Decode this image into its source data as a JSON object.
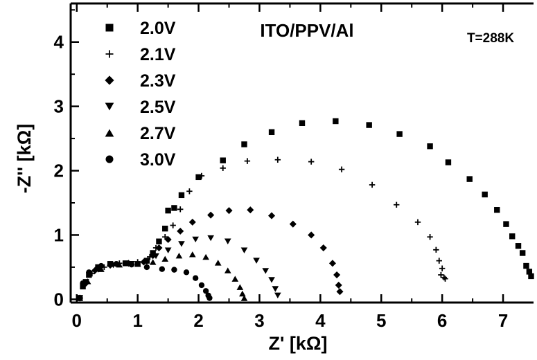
{
  "chart_data": {
    "type": "scatter",
    "title": "ITO/PPV/Al",
    "annotation": "T=288K",
    "xlabel": "Z' [kΩ]",
    "ylabel": "-Z'' [kΩ]",
    "xlim": [
      -0.1,
      7.5
    ],
    "ylim": [
      -0.05,
      4.6
    ],
    "xticks": [
      0,
      1,
      2,
      3,
      4,
      5,
      6,
      7
    ],
    "yticks": [
      0,
      1,
      2,
      3,
      4
    ],
    "legend_position": "top-left",
    "series": [
      {
        "name": "2.0V",
        "marker": "square",
        "x": [
          0.05,
          0.1,
          0.2,
          0.35,
          0.55,
          0.8,
          1.0,
          1.15,
          1.25,
          1.35,
          1.45,
          1.5,
          1.6,
          1.72,
          2.0,
          2.4,
          2.75,
          3.2,
          3.7,
          4.25,
          4.8,
          5.3,
          5.8,
          6.1,
          6.45,
          6.7,
          6.9,
          7.05,
          7.15,
          7.25,
          7.32,
          7.38,
          7.43,
          7.46
        ],
        "y": [
          0.02,
          0.2,
          0.38,
          0.5,
          0.55,
          0.56,
          0.55,
          0.6,
          0.72,
          0.9,
          1.1,
          1.38,
          1.42,
          1.62,
          1.9,
          2.16,
          2.41,
          2.6,
          2.74,
          2.77,
          2.71,
          2.57,
          2.38,
          2.13,
          1.87,
          1.63,
          1.39,
          1.17,
          0.98,
          0.83,
          0.72,
          0.52,
          0.43,
          0.36
        ]
      },
      {
        "name": "2.1V",
        "marker": "plus",
        "x": [
          0.05,
          0.12,
          0.25,
          0.45,
          0.7,
          1.0,
          1.2,
          1.3,
          1.45,
          1.58,
          1.7,
          1.85,
          2.05,
          2.4,
          2.8,
          3.3,
          3.85,
          4.35,
          4.85,
          5.25,
          5.6,
          5.8,
          5.9,
          5.95,
          6.0,
          6.03,
          6.05,
          5.98
        ],
        "y": [
          0.02,
          0.22,
          0.4,
          0.5,
          0.56,
          0.58,
          0.66,
          0.8,
          0.97,
          1.15,
          1.4,
          1.68,
          1.92,
          2.04,
          2.15,
          2.17,
          2.14,
          2.02,
          1.78,
          1.47,
          1.2,
          0.97,
          0.77,
          0.6,
          0.48,
          0.34,
          0.32,
          0.38
        ]
      },
      {
        "name": "2.3V",
        "marker": "diamond",
        "x": [
          0.05,
          0.15,
          0.3,
          0.55,
          0.85,
          1.1,
          1.25,
          1.35,
          1.5,
          1.7,
          1.9,
          2.2,
          2.5,
          2.85,
          3.2,
          3.55,
          3.85,
          4.05,
          4.2,
          4.27,
          4.3,
          4.32
        ],
        "y": [
          0.02,
          0.25,
          0.45,
          0.53,
          0.56,
          0.58,
          0.68,
          0.8,
          0.93,
          1.06,
          1.2,
          1.31,
          1.38,
          1.39,
          1.3,
          1.17,
          1.0,
          0.8,
          0.56,
          0.38,
          0.22,
          0.12
        ]
      },
      {
        "name": "2.5V",
        "marker": "triangle-down",
        "x": [
          0.05,
          0.15,
          0.35,
          0.6,
          0.9,
          1.15,
          1.3,
          1.5,
          1.72,
          1.95,
          2.2,
          2.48,
          2.75,
          2.95,
          3.1,
          3.2,
          3.26,
          3.3
        ],
        "y": [
          0.02,
          0.27,
          0.46,
          0.53,
          0.55,
          0.58,
          0.67,
          0.76,
          0.86,
          0.93,
          0.95,
          0.9,
          0.76,
          0.6,
          0.44,
          0.3,
          0.16,
          0.06
        ]
      },
      {
        "name": "2.7V",
        "marker": "triangle-up",
        "x": [
          0.05,
          0.18,
          0.4,
          0.7,
          1.0,
          1.25,
          1.45,
          1.68,
          1.9,
          2.12,
          2.32,
          2.48,
          2.6,
          2.68,
          2.72,
          2.75
        ],
        "y": [
          0.02,
          0.28,
          0.47,
          0.54,
          0.55,
          0.58,
          0.63,
          0.68,
          0.7,
          0.66,
          0.57,
          0.45,
          0.32,
          0.19,
          0.09,
          0.02
        ]
      },
      {
        "name": "3.0V",
        "marker": "circle",
        "x": [
          0.05,
          0.1,
          0.2,
          0.4,
          0.65,
          0.9,
          1.15,
          1.4,
          1.6,
          1.8,
          1.95,
          2.05,
          2.12,
          2.16,
          2.18
        ],
        "y": [
          0.02,
          0.25,
          0.42,
          0.52,
          0.55,
          0.54,
          0.5,
          0.47,
          0.46,
          0.42,
          0.33,
          0.22,
          0.13,
          0.06,
          0.02
        ]
      }
    ]
  }
}
